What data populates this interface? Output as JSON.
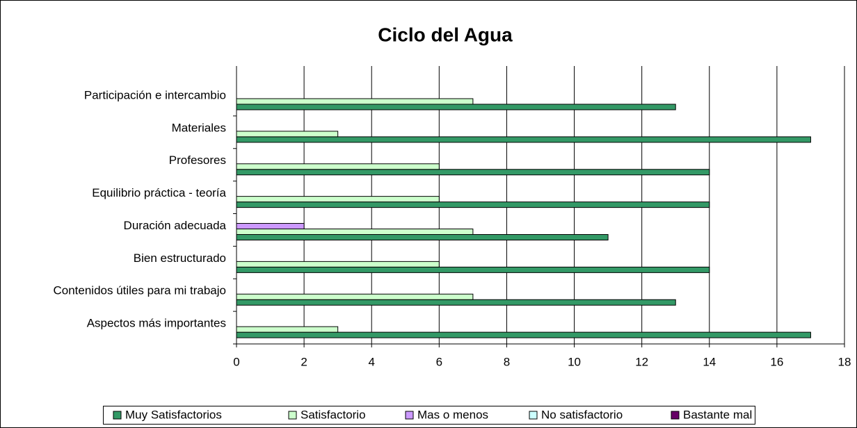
{
  "chart_data": {
    "type": "hbar",
    "title": "Ciclo del Agua",
    "categories": [
      "Participación e intercambio",
      "Materiales",
      "Profesores",
      "Equilibrio práctica - teoría",
      "Duración adecuada",
      "Bien estructurado",
      "Contenidos útiles para mi trabajo",
      "Aspectos más importantes"
    ],
    "series": [
      {
        "name": "Muy Satisfactorios",
        "color": "#339966",
        "values": [
          13,
          17,
          14,
          14,
          11,
          14,
          13,
          17
        ]
      },
      {
        "name": "Satisfactorio",
        "color": "#ccffcc",
        "values": [
          7,
          3,
          6,
          6,
          7,
          6,
          7,
          3
        ]
      },
      {
        "name": "Mas o menos",
        "color": "#cc99ff",
        "values": [
          0,
          0,
          0,
          0,
          2,
          0,
          0,
          0
        ]
      },
      {
        "name": "No satisfactorio",
        "color": "#ccffff",
        "values": [
          0,
          0,
          0,
          0,
          0,
          0,
          0,
          0
        ]
      },
      {
        "name": "Bastante mal",
        "color": "#660066",
        "values": [
          0,
          0,
          0,
          0,
          0,
          0,
          0,
          0
        ]
      }
    ],
    "xlim": [
      0,
      18
    ],
    "xticks": [
      0,
      2,
      4,
      6,
      8,
      10,
      12,
      14,
      16,
      18
    ],
    "grid": true,
    "legend": "bottom"
  }
}
